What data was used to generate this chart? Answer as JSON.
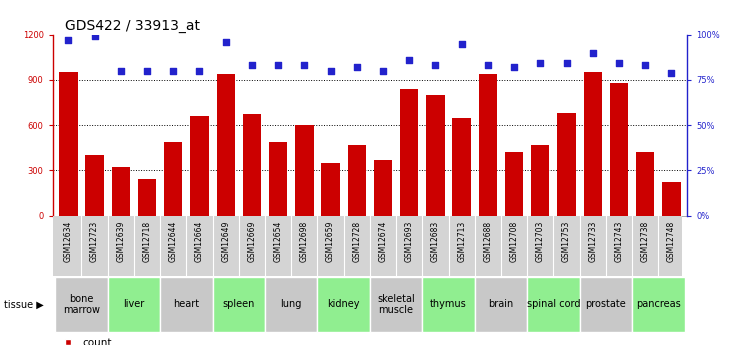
{
  "title": "GDS422 / 33913_at",
  "samples": [
    "GSM12634",
    "GSM12723",
    "GSM12639",
    "GSM12718",
    "GSM12644",
    "GSM12664",
    "GSM12649",
    "GSM12669",
    "GSM12654",
    "GSM12698",
    "GSM12659",
    "GSM12728",
    "GSM12674",
    "GSM12693",
    "GSM12683",
    "GSM12713",
    "GSM12688",
    "GSM12708",
    "GSM12703",
    "GSM12753",
    "GSM12733",
    "GSM12743",
    "GSM12738",
    "GSM12748"
  ],
  "counts": [
    950,
    400,
    320,
    240,
    490,
    660,
    940,
    670,
    490,
    600,
    350,
    470,
    370,
    840,
    800,
    650,
    940,
    420,
    470,
    680,
    950,
    880,
    420,
    220
  ],
  "percentiles": [
    97,
    99,
    80,
    80,
    80,
    80,
    96,
    83,
    83,
    83,
    80,
    82,
    80,
    86,
    83,
    95,
    83,
    82,
    84,
    84,
    90,
    84,
    83,
    79
  ],
  "tissues": [
    {
      "name": "bone\nmarrow",
      "start": 0,
      "end": 2,
      "color": "#c8c8c8"
    },
    {
      "name": "liver",
      "start": 2,
      "end": 4,
      "color": "#90ee90"
    },
    {
      "name": "heart",
      "start": 4,
      "end": 6,
      "color": "#c8c8c8"
    },
    {
      "name": "spleen",
      "start": 6,
      "end": 8,
      "color": "#90ee90"
    },
    {
      "name": "lung",
      "start": 8,
      "end": 10,
      "color": "#c8c8c8"
    },
    {
      "name": "kidney",
      "start": 10,
      "end": 12,
      "color": "#90ee90"
    },
    {
      "name": "skeletal\nmuscle",
      "start": 12,
      "end": 14,
      "color": "#c8c8c8"
    },
    {
      "name": "thymus",
      "start": 14,
      "end": 16,
      "color": "#90ee90"
    },
    {
      "name": "brain",
      "start": 16,
      "end": 18,
      "color": "#c8c8c8"
    },
    {
      "name": "spinal cord",
      "start": 18,
      "end": 20,
      "color": "#90ee90"
    },
    {
      "name": "prostate",
      "start": 20,
      "end": 22,
      "color": "#c8c8c8"
    },
    {
      "name": "pancreas",
      "start": 22,
      "end": 24,
      "color": "#90ee90"
    }
  ],
  "bar_color": "#cc0000",
  "dot_color": "#2222cc",
  "left_ylim": [
    0,
    1200
  ],
  "left_yticks": [
    0,
    300,
    600,
    900,
    1200
  ],
  "right_ylim": [
    0,
    100
  ],
  "right_yticks": [
    0,
    25,
    50,
    75,
    100
  ],
  "title_fontsize": 10,
  "tick_fontsize": 6,
  "sample_fontsize": 5.5,
  "tissue_fontsize": 7,
  "legend_fontsize": 7.5,
  "sample_bg": "#d4d4d4"
}
